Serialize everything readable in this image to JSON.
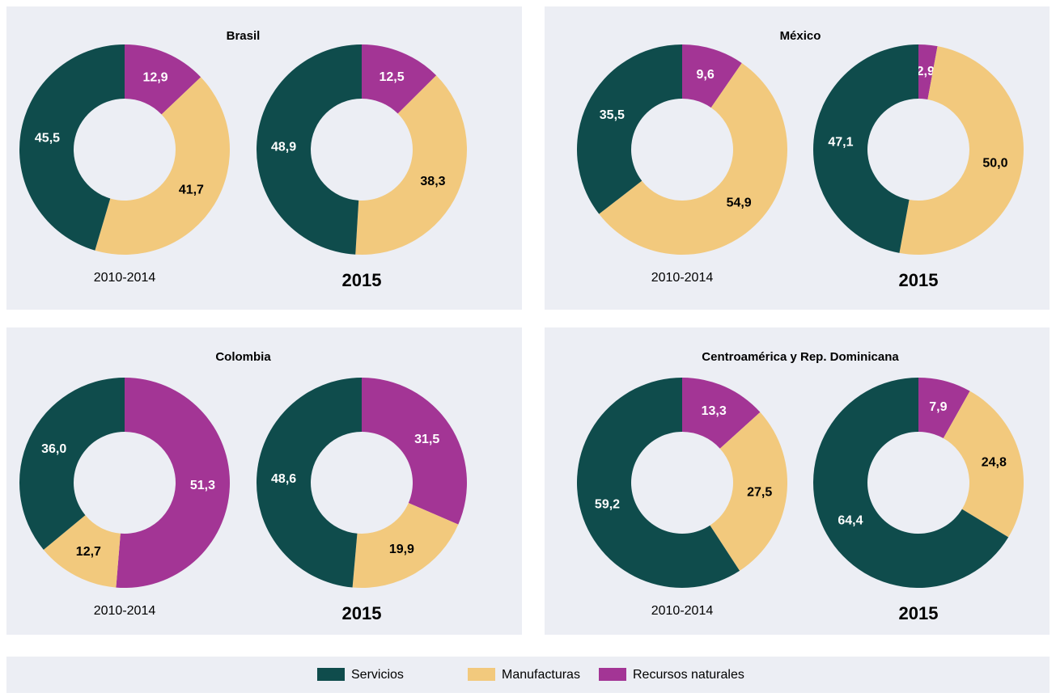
{
  "chart_data": [
    {
      "type": "donut",
      "title": "Brasil",
      "groups": [
        {
          "label": "2010-2014",
          "values": [
            45.5,
            41.7,
            12.9
          ],
          "value_labels": [
            "45,5",
            "41,7",
            "12,9"
          ]
        },
        {
          "label": "2015",
          "values": [
            48.9,
            38.3,
            12.5
          ],
          "value_labels": [
            "48,9",
            "38,3",
            "12,5"
          ]
        }
      ]
    },
    {
      "type": "donut",
      "title": "México",
      "groups": [
        {
          "label": "2010-2014",
          "values": [
            35.5,
            54.9,
            9.6
          ],
          "value_labels": [
            "35,5",
            "54,9",
            "9,6"
          ]
        },
        {
          "label": "2015",
          "values": [
            47.1,
            50.0,
            2.9
          ],
          "value_labels": [
            "47,1",
            "50,0",
            "2,9"
          ]
        }
      ]
    },
    {
      "type": "donut",
      "title": "Colombia",
      "groups": [
        {
          "label": "2010-2014",
          "values": [
            36.0,
            12.7,
            51.3
          ],
          "value_labels": [
            "36,0",
            "12,7",
            "51,3"
          ]
        },
        {
          "label": "2015",
          "values": [
            48.6,
            19.9,
            31.5
          ],
          "value_labels": [
            "48,6",
            "19,9",
            "31,5"
          ]
        }
      ]
    },
    {
      "type": "donut",
      "title": "Centroamérica y Rep. Dominicana",
      "groups": [
        {
          "label": "2010-2014",
          "values": [
            59.2,
            27.5,
            13.3
          ],
          "value_labels": [
            "59,2",
            "27,5",
            "13,3"
          ]
        },
        {
          "label": "2015",
          "values": [
            64.4,
            24.8,
            7.9
          ],
          "value_labels": [
            "64,4",
            "24,8",
            "7,9"
          ]
        }
      ]
    }
  ],
  "legend": {
    "categories": [
      "Servicios",
      "Manufacturas",
      "Recursos naturales"
    ],
    "colors": [
      "#0f4c4c",
      "#f2c97d",
      "#a33595"
    ],
    "label_colors": [
      "#ffffff",
      "#000000",
      "#ffffff"
    ]
  }
}
